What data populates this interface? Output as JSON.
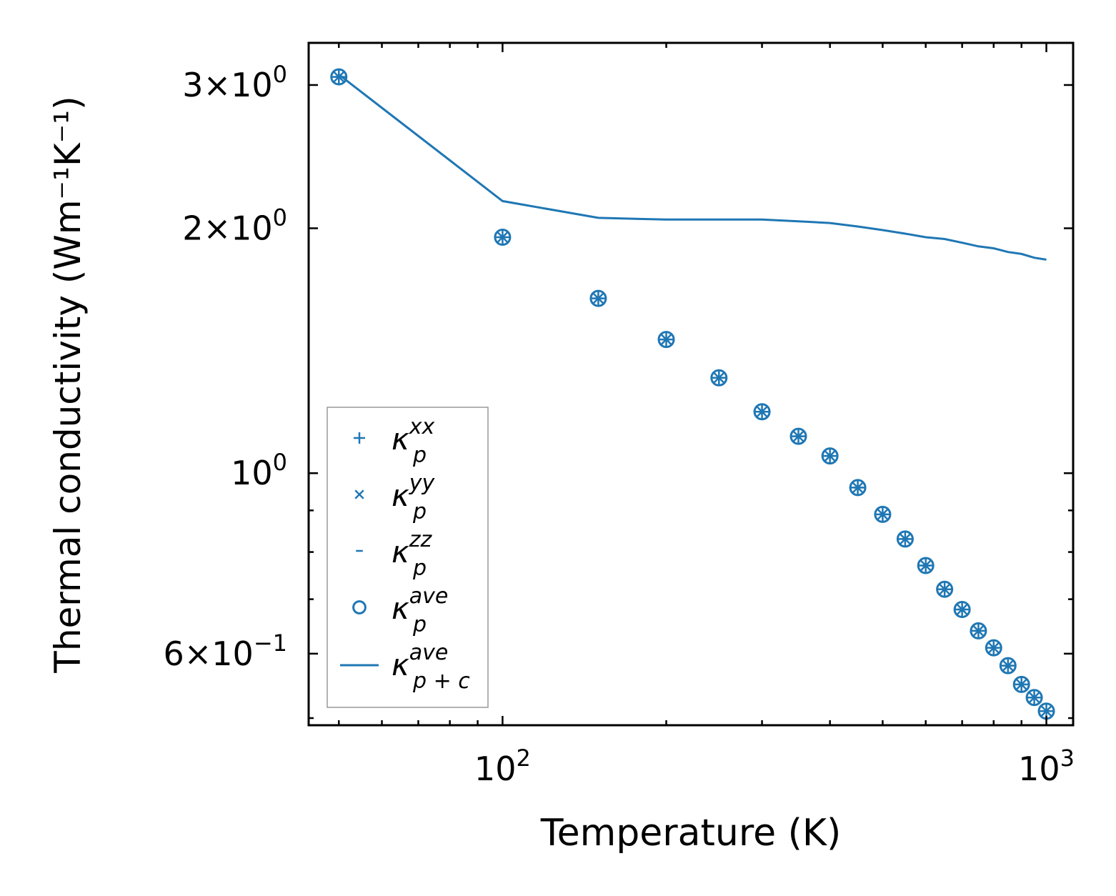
{
  "chart_data": {
    "type": "scatter",
    "xscale": "log",
    "yscale": "log",
    "xlabel": "Temperature (K)",
    "ylabel": "Thermal conductivity (Wm⁻¹K⁻¹)",
    "xlim": [
      44,
      1120
    ],
    "ylim": [
      0.49,
      3.38
    ],
    "xticks": [
      {
        "value": 100,
        "base": "10",
        "exp": "2"
      },
      {
        "value": 1000,
        "base": "10",
        "exp": "3"
      }
    ],
    "yticks": [
      {
        "value": 3,
        "mant": "3×",
        "base": "10",
        "exp": "0"
      },
      {
        "value": 2,
        "mant": "2×",
        "base": "10",
        "exp": "0"
      },
      {
        "value": 1,
        "mant": "",
        "base": "10",
        "exp": "0"
      },
      {
        "value": 0.6,
        "mant": "6×",
        "base": "10",
        "exp": "−1"
      }
    ],
    "series_color": "#1f77b4",
    "x": [
      50,
      100,
      150,
      200,
      250,
      300,
      350,
      400,
      450,
      500,
      550,
      600,
      650,
      700,
      750,
      800,
      850,
      900,
      950,
      1000
    ],
    "series": [
      {
        "name": "κ_p^xx",
        "marker": "plus",
        "legend_base": "κ",
        "legend_sub": "p",
        "legend_sup": "xx",
        "values": [
          3.07,
          1.95,
          1.64,
          1.46,
          1.31,
          1.19,
          1.11,
          1.05,
          0.96,
          0.89,
          0.83,
          0.77,
          0.72,
          0.68,
          0.64,
          0.61,
          0.58,
          0.55,
          0.53,
          0.51
        ]
      },
      {
        "name": "κ_p^yy",
        "marker": "x",
        "legend_base": "κ",
        "legend_sub": "p",
        "legend_sup": "yy",
        "values": [
          3.07,
          1.95,
          1.64,
          1.46,
          1.31,
          1.19,
          1.11,
          1.05,
          0.96,
          0.89,
          0.83,
          0.77,
          0.72,
          0.68,
          0.64,
          0.61,
          0.58,
          0.55,
          0.53,
          0.51
        ]
      },
      {
        "name": "κ_p^zz",
        "marker": "hline",
        "legend_base": "κ",
        "legend_sub": "p",
        "legend_sup": "zz",
        "values": [
          3.07,
          1.95,
          1.64,
          1.46,
          1.31,
          1.19,
          1.11,
          1.05,
          0.96,
          0.89,
          0.83,
          0.77,
          0.72,
          0.68,
          0.64,
          0.61,
          0.58,
          0.55,
          0.53,
          0.51
        ]
      },
      {
        "name": "κ_p^ave",
        "marker": "circle",
        "legend_base": "κ",
        "legend_sub": "p",
        "legend_sup": "ave",
        "values": [
          3.07,
          1.95,
          1.64,
          1.46,
          1.31,
          1.19,
          1.11,
          1.05,
          0.96,
          0.89,
          0.83,
          0.77,
          0.72,
          0.68,
          0.64,
          0.61,
          0.58,
          0.55,
          0.53,
          0.51
        ]
      },
      {
        "name": "κ_p+c^ave",
        "marker": "line",
        "legend_base": "κ",
        "legend_sub": "p + c",
        "legend_sup": "ave",
        "values": [
          3.09,
          2.16,
          2.06,
          2.05,
          2.05,
          2.05,
          2.04,
          2.03,
          2.01,
          1.99,
          1.97,
          1.95,
          1.94,
          1.92,
          1.9,
          1.89,
          1.87,
          1.86,
          1.84,
          1.83
        ]
      }
    ]
  }
}
